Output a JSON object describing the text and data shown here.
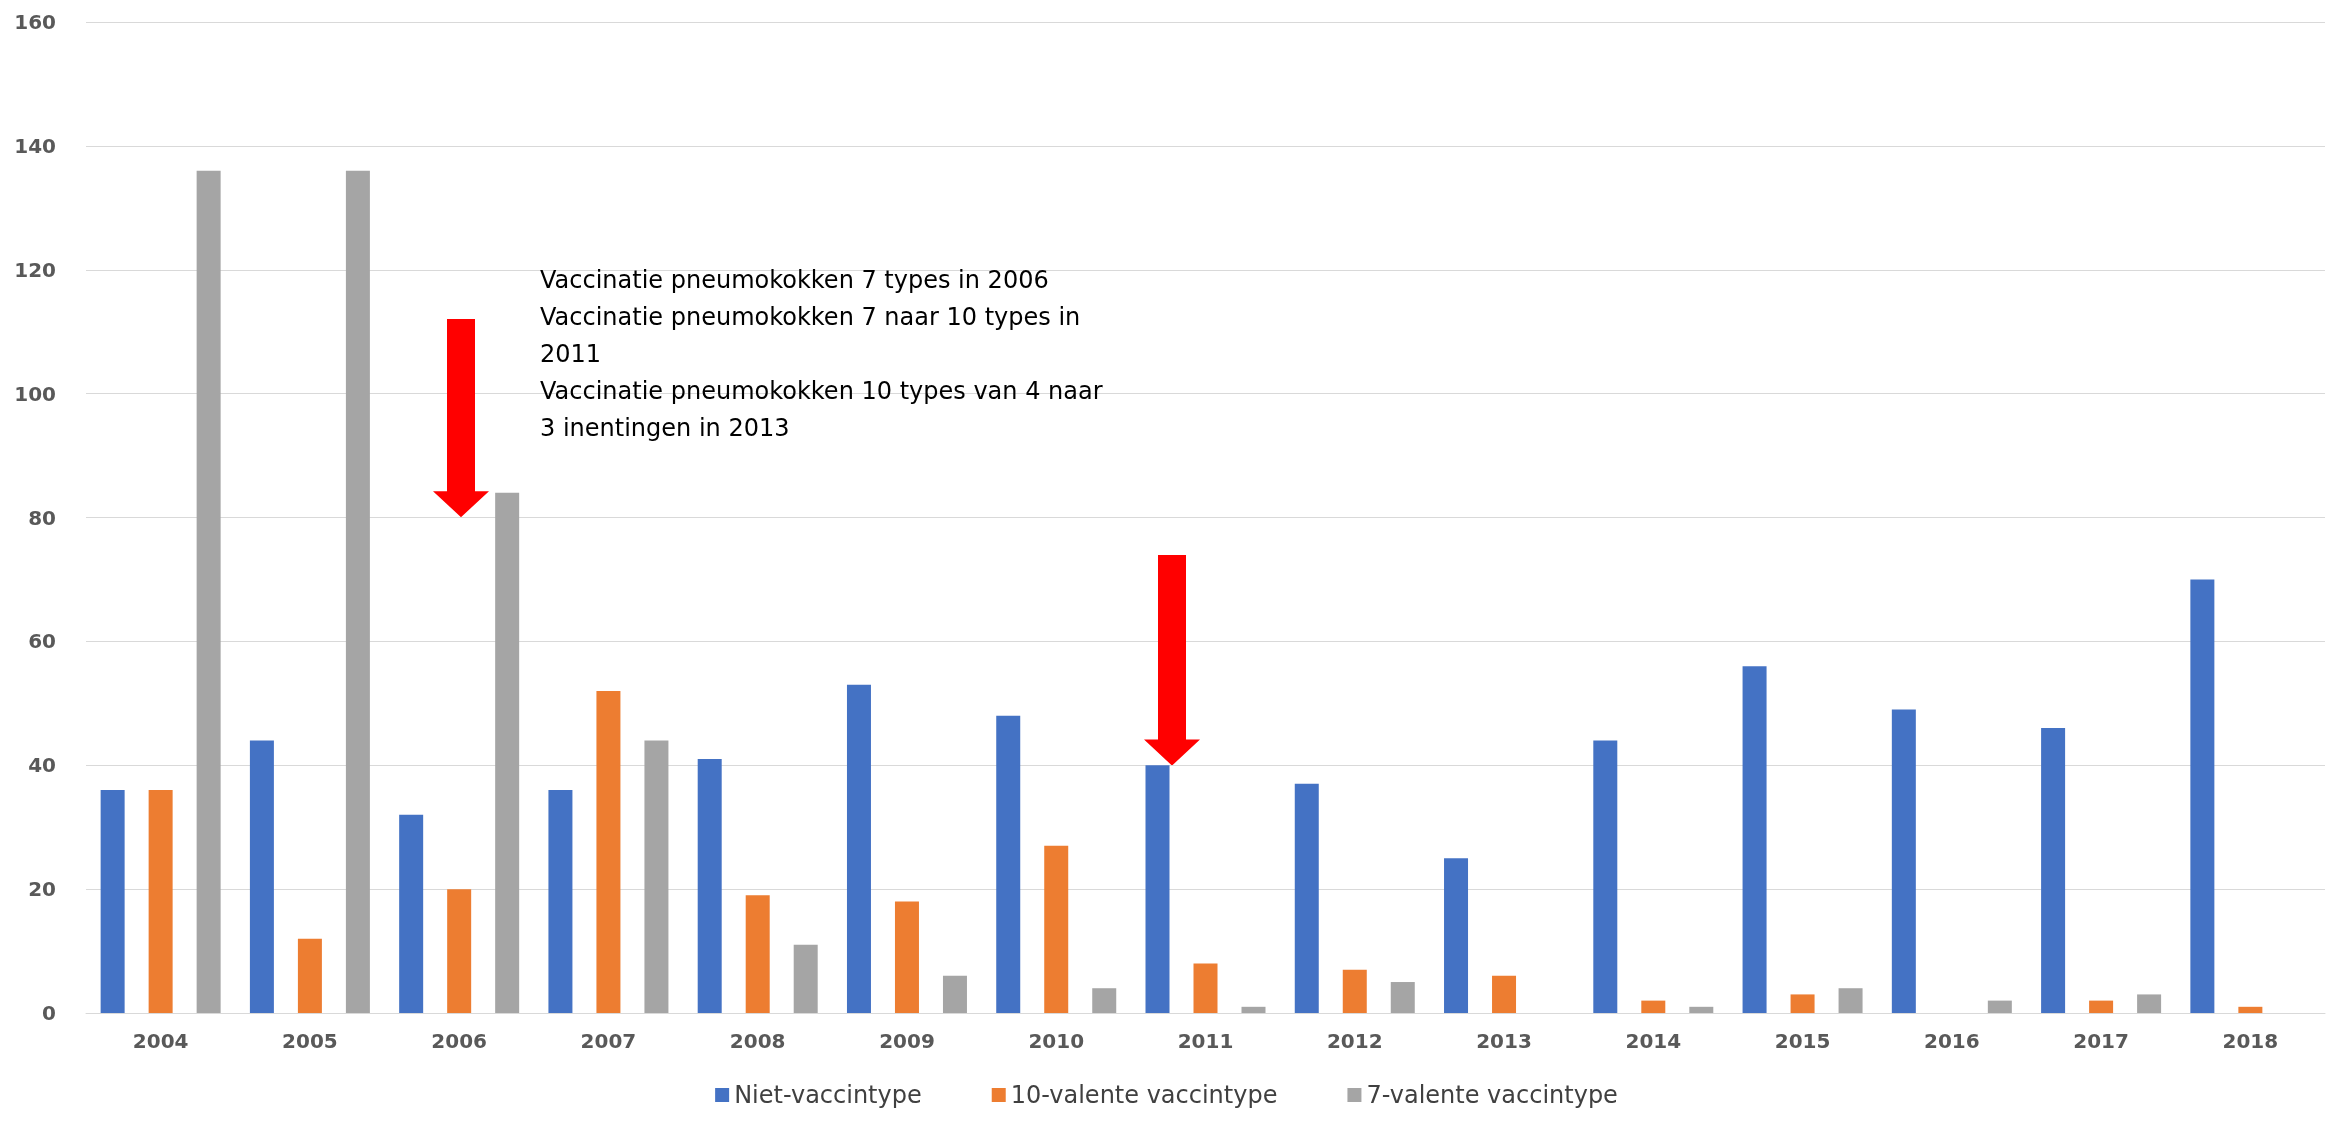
{
  "chart_data": {
    "type": "bar",
    "categories": [
      "2004",
      "2005",
      "2006",
      "2007",
      "2008",
      "2009",
      "2010",
      "2011",
      "2012",
      "2013",
      "2014",
      "2015",
      "2016",
      "2017",
      "2018"
    ],
    "series": [
      {
        "name": "Niet-vaccintype",
        "color": "#4472c4",
        "values": [
          36,
          44,
          32,
          36,
          41,
          53,
          48,
          40,
          37,
          25,
          44,
          56,
          49,
          46,
          70
        ]
      },
      {
        "name": "10-valente vaccintype",
        "color": "#ed7d31",
        "values": [
          36,
          12,
          20,
          52,
          19,
          18,
          27,
          8,
          7,
          6,
          2,
          3,
          0,
          2,
          1
        ]
      },
      {
        "name": "7-valente vaccintype",
        "color": "#a5a5a5",
        "values": [
          136,
          136,
          84,
          44,
          11,
          6,
          4,
          1,
          5,
          0,
          1,
          4,
          2,
          3,
          0
        ]
      }
    ],
    "ylim": [
      0,
      160
    ],
    "yticks": [
      0,
      20,
      40,
      60,
      80,
      100,
      120,
      140,
      160
    ],
    "grid": "y",
    "legend": "bottom",
    "annotations": [
      "Vaccinatie pneumokokken 7 types in 2006",
      "Vaccinatie pneumokokken 7 naar 10 types in 2011",
      "Vaccinatie pneumokokken 10 types van 4 naar 3 inentingen in 2013"
    ]
  }
}
